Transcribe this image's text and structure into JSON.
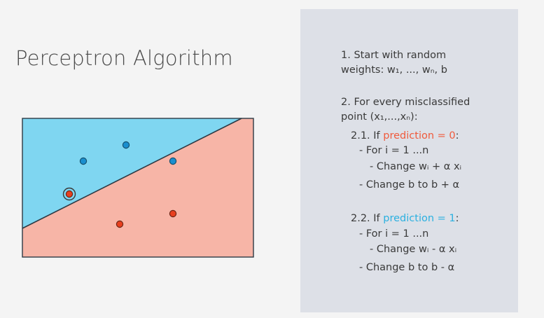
{
  "title": "Perceptron Algorithm",
  "colors": {
    "blue_region": "#7fd6f1",
    "red_region": "#f7b5a7",
    "blue_point": "#1a8fcf",
    "red_point": "#e8401f",
    "panel_bg": "#dde0e7",
    "prediction_zero": "#f05a3c",
    "prediction_one": "#2bb0e0"
  },
  "diagram": {
    "blue_points": 3,
    "red_points": 3,
    "highlighted_misclassified_point": "red point in blue region"
  },
  "steps": {
    "s1_line1": "1. Start with random",
    "s1_line2": "weights: w₁, ..., wₙ, b",
    "s2_line1": "2. For every misclassified",
    "s2_line2": "point (x₁,...,xₙ):",
    "s21_prefix": "2.1. If ",
    "s21_condition": "prediction = 0",
    "s21_suffix": ":",
    "s21_for": "- For i = 1 ...n",
    "s21_change_w": "- Change wᵢ + α xᵢ",
    "s21_change_b": "- Change b to b + α",
    "s22_prefix": "2.2. If ",
    "s22_condition": "prediction = 1",
    "s22_suffix": ":",
    "s22_for": "- For i = 1 ...n",
    "s22_change_w": "- Change wᵢ - α xᵢ",
    "s22_change_b": "- Change b to b - α"
  }
}
